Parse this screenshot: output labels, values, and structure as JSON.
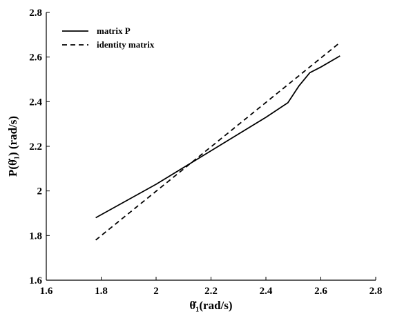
{
  "chart_data": {
    "type": "line",
    "xlabel": "θ̇₁(rad/s)",
    "ylabel": "P(θ̇₁) (rad/s)",
    "xlim": [
      1.6,
      2.8
    ],
    "ylim": [
      1.6,
      2.8
    ],
    "xticks": [
      "1.6",
      "1.8",
      "2",
      "2.2",
      "2.4",
      "2.6",
      "2.8"
    ],
    "yticks": [
      "1.6",
      "1.8",
      "2",
      "2.2",
      "2.4",
      "2.6",
      "2.8"
    ],
    "grid": false,
    "legend_position": "top-left",
    "series": [
      {
        "name": "matrix P",
        "style": "solid",
        "color": "#000000",
        "x": [
          1.78,
          2.0,
          2.2,
          2.4,
          2.48,
          2.52,
          2.56,
          2.6,
          2.67
        ],
        "y": [
          1.88,
          2.03,
          2.18,
          2.33,
          2.395,
          2.47,
          2.53,
          2.555,
          2.605
        ]
      },
      {
        "name": "identity matrix",
        "style": "dashed",
        "color": "#000000",
        "x": [
          1.78,
          2.67
        ],
        "y": [
          1.78,
          2.665
        ]
      }
    ]
  }
}
